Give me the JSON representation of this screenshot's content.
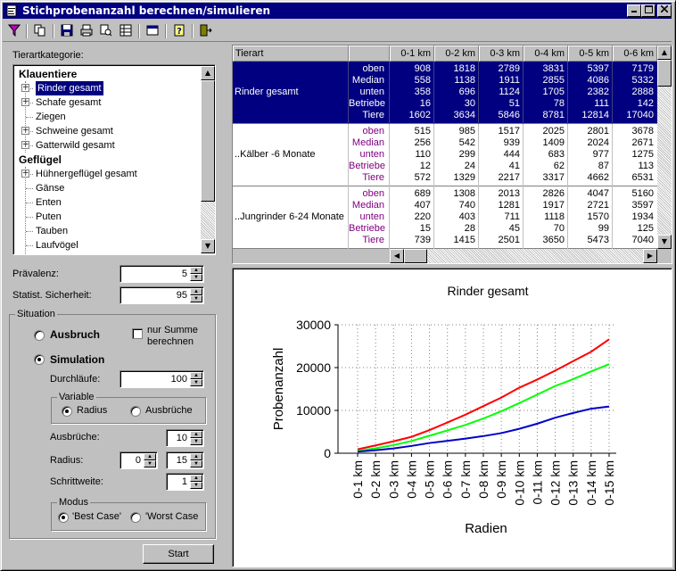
{
  "window": {
    "title": "Stichprobenanzahl berechnen/simulieren"
  },
  "left": {
    "tree_label": "Tierartkategorie:",
    "tree": [
      {
        "label": "Klauentiere",
        "type": "category"
      },
      {
        "label": "Rinder gesamt",
        "type": "expandable",
        "selected": true
      },
      {
        "label": "Schafe gesamt",
        "type": "expandable"
      },
      {
        "label": "Ziegen",
        "type": "leaf"
      },
      {
        "label": "Schweine gesamt",
        "type": "expandable"
      },
      {
        "label": "Gatterwild gesamt",
        "type": "expandable"
      },
      {
        "label": "Geflügel",
        "type": "category"
      },
      {
        "label": "Hühnergeflügel gesamt",
        "type": "expandable"
      },
      {
        "label": "Gänse",
        "type": "leaf"
      },
      {
        "label": "Enten",
        "type": "leaf"
      },
      {
        "label": "Puten",
        "type": "leaf"
      },
      {
        "label": "Tauben",
        "type": "leaf"
      },
      {
        "label": "Laufvögel",
        "type": "leaf"
      }
    ],
    "praevalenz_label": "Prävalenz:",
    "praevalenz_value": "5",
    "sicherheit_label": "Statist. Sicherheit:",
    "sicherheit_value": "95",
    "situation_label": "Situation",
    "ausbruch_label": "Ausbruch",
    "nur_summe_label_1": "nur Summe",
    "nur_summe_label_2": "berechnen",
    "simulation_label": "Simulation",
    "durchlaeufe_label": "Durchläufe:",
    "durchlaeufe_value": "100",
    "variable_label": "Variable",
    "radius_option": "Radius",
    "ausbrueche_option": "Ausbrüche",
    "ausbrueche_label": "Ausbrüche:",
    "ausbrueche_value": "10",
    "radius_label": "Radius:",
    "radius_from": "0",
    "radius_to": "15",
    "schrittweite_label": "Schrittweite:",
    "schrittweite_value": "1",
    "modus_label": "Modus",
    "best_case": "'Best Case'",
    "worst_case": "'Worst Case",
    "start_label": "Start"
  },
  "table": {
    "headers": [
      "Tierart",
      "",
      "0-1 km",
      "0-2 km",
      "0-3 km",
      "0-4 km",
      "0-5 km",
      "0-6 km"
    ],
    "groups": [
      {
        "name": "Rinder gesamt",
        "rows": [
          {
            "label": "oben",
            "values": [
              "908",
              "1818",
              "2789",
              "3831",
              "5397",
              "7179"
            ]
          },
          {
            "label": "Median",
            "values": [
              "558",
              "1138",
              "1911",
              "2855",
              "4086",
              "5332"
            ]
          },
          {
            "label": "unten",
            "values": [
              "358",
              "696",
              "1124",
              "1705",
              "2382",
              "2888"
            ]
          },
          {
            "label": "Betriebe",
            "values": [
              "16",
              "30",
              "51",
              "78",
              "111",
              "142"
            ]
          },
          {
            "label": "Tiere",
            "values": [
              "1602",
              "3634",
              "5846",
              "8781",
              "12814",
              "17040"
            ]
          }
        ]
      },
      {
        "name": "..Kälber -6 Monate",
        "rows": [
          {
            "label": "oben",
            "values": [
              "515",
              "985",
              "1517",
              "2025",
              "2801",
              "3678"
            ]
          },
          {
            "label": "Median",
            "values": [
              "256",
              "542",
              "939",
              "1409",
              "2024",
              "2671"
            ]
          },
          {
            "label": "unten",
            "values": [
              "110",
              "299",
              "444",
              "683",
              "977",
              "1275"
            ]
          },
          {
            "label": "Betriebe",
            "values": [
              "12",
              "24",
              "41",
              "62",
              "87",
              "113"
            ]
          },
          {
            "label": "Tiere",
            "values": [
              "572",
              "1329",
              "2217",
              "3317",
              "4662",
              "6531"
            ]
          }
        ]
      },
      {
        "name": "..Jungrinder 6-24 Monate",
        "rows": [
          {
            "label": "oben",
            "values": [
              "689",
              "1308",
              "2013",
              "2826",
              "4047",
              "5160"
            ]
          },
          {
            "label": "Median",
            "values": [
              "407",
              "740",
              "1281",
              "1917",
              "2721",
              "3597"
            ]
          },
          {
            "label": "unten",
            "values": [
              "220",
              "403",
              "711",
              "1118",
              "1570",
              "1934"
            ]
          },
          {
            "label": "Betriebe",
            "values": [
              "15",
              "28",
              "45",
              "70",
              "99",
              "125"
            ]
          },
          {
            "label": "Tiere",
            "values": [
              "739",
              "1415",
              "2501",
              "3650",
              "5473",
              "7040"
            ]
          }
        ]
      }
    ],
    "colors": {
      "selected_bg": "#000080",
      "selected_fg": "#ffffff",
      "sublabel": "#800080"
    }
  },
  "chart_data": {
    "type": "line",
    "title": "Rinder gesamt",
    "xlabel": "Radien",
    "ylabel": "Probenanzahl",
    "categories": [
      "0-1 km",
      "0-2 km",
      "0-3 km",
      "0-4 km",
      "0-5 km",
      "0-6 km",
      "0-7 km",
      "0-8 km",
      "0-9 km",
      "0-10 km",
      "0-11 km",
      "0-12 km",
      "0-13 km",
      "0-14 km",
      "0-15 km"
    ],
    "yticks": [
      0,
      10000,
      20000,
      30000
    ],
    "ylim": [
      0,
      30000
    ],
    "grid": true,
    "series": [
      {
        "color": "#ff0000",
        "values": [
          908,
          1818,
          2789,
          3831,
          5397,
          7179,
          9000,
          11000,
          13000,
          15300,
          17200,
          19300,
          21500,
          23700,
          26600
        ]
      },
      {
        "color": "#00ff00",
        "values": [
          558,
          1138,
          1911,
          2855,
          4086,
          5332,
          6600,
          8100,
          9800,
          11700,
          13700,
          15700,
          17300,
          19100,
          20800
        ]
      },
      {
        "color": "#0000cc",
        "values": [
          358,
          696,
          1124,
          1705,
          2382,
          2888,
          3400,
          4000,
          4700,
          5700,
          6900,
          8300,
          9400,
          10400,
          10900
        ]
      }
    ]
  }
}
